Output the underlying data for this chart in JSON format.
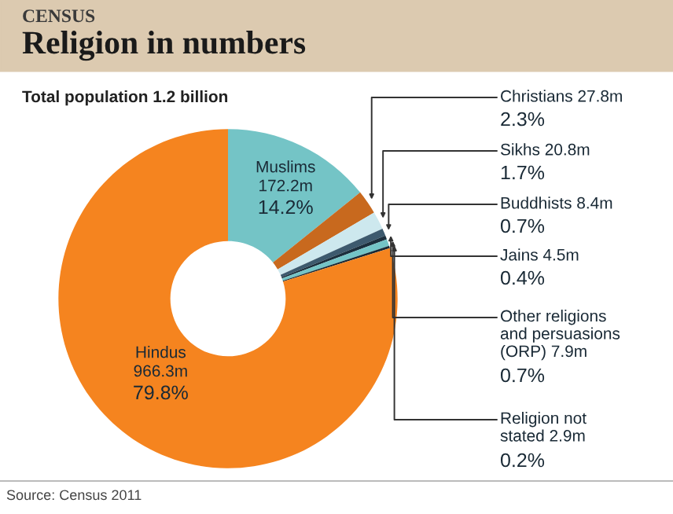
{
  "chart_data": {
    "type": "donut",
    "title": "Religion in numbers",
    "subtitle": "Total population 1.2 billion",
    "categories": [
      "Muslims",
      "Christians",
      "Sikhs",
      "Buddhists",
      "Jains",
      "Other religions\nand persuasions\n(ORP)",
      "Religion not\nstated",
      "Hindus"
    ],
    "values": [
      172.2,
      27.8,
      20.8,
      8.4,
      4.5,
      7.9,
      2.9,
      966.3
    ],
    "colors": [
      "#74c4c6",
      "#c8691e",
      "#cde8ee",
      "#3d5a6e",
      "#1c2f3d",
      "#74c4c6",
      "#1a2a36",
      "#f5841f"
    ],
    "value_labels": [
      "172.2m",
      "27.8m",
      "20.8m",
      "8.4m",
      "4.5m",
      "7.9m",
      "2.9m",
      "966.3m"
    ],
    "annotations": [
      "CENSUS",
      {
        "text": "14.2%",
        "x": "Muslims"
      },
      {
        "text": "2.3%",
        "x": "Christians"
      },
      {
        "text": "1.7%",
        "x": "Sikhs"
      },
      {
        "text": "0.7%",
        "x": "Buddhists"
      },
      {
        "text": "0.4%",
        "x": "Jains"
      },
      {
        "text": "0.7%",
        "x": "Other religions\nand persuasions\n(ORP)"
      },
      {
        "text": "0.2%",
        "x": "Religion not\nstated"
      },
      {
        "text": "79.8%",
        "x": "Hindus"
      },
      "Source: Census 2011"
    ]
  }
}
